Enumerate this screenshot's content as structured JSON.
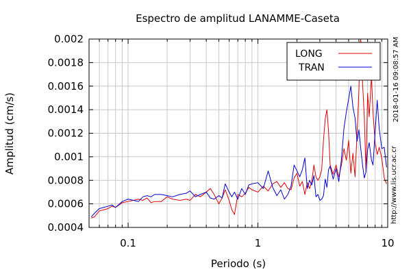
{
  "chart_data": {
    "type": "line",
    "title": "Espectro de amplitud LANAMME-Caseta",
    "xlabel": "Periodo (s)",
    "ylabel": "Amplitud (cm/s)",
    "xscale": "log",
    "xlim": [
      0.05,
      10
    ],
    "ylim": [
      0.0004,
      0.002
    ],
    "x_ticks": [
      0.1,
      1,
      10
    ],
    "x_tick_labels": [
      "0.1",
      "1",
      "10"
    ],
    "y_ticks": [
      0.0004,
      0.0006,
      0.0008,
      0.001,
      0.0012,
      0.0014,
      0.0016,
      0.0018,
      0.002
    ],
    "y_tick_labels": [
      "0.0004",
      "0.0006",
      "0.0008",
      "0.001",
      "0.0012",
      "0.0014",
      "0.0016",
      "0.0018",
      "0.002"
    ],
    "grid": true,
    "legend_position": "top-right",
    "series": [
      {
        "name": "LONG",
        "color": "#e00000",
        "x": [
          0.052,
          0.055,
          0.06,
          0.065,
          0.07,
          0.075,
          0.08,
          0.09,
          0.1,
          0.11,
          0.12,
          0.13,
          0.14,
          0.15,
          0.16,
          0.18,
          0.2,
          0.22,
          0.25,
          0.28,
          0.3,
          0.33,
          0.36,
          0.4,
          0.43,
          0.46,
          0.5,
          0.53,
          0.56,
          0.6,
          0.63,
          0.66,
          0.7,
          0.75,
          0.8,
          0.85,
          0.9,
          1.0,
          1.1,
          1.2,
          1.3,
          1.4,
          1.5,
          1.6,
          1.7,
          1.8,
          1.9,
          2.0,
          2.1,
          2.2,
          2.3,
          2.4,
          2.5,
          2.6,
          2.7,
          2.8,
          2.9,
          3.0,
          3.1,
          3.2,
          3.3,
          3.4,
          3.5,
          3.6,
          3.8,
          4.0,
          4.2,
          4.4,
          4.6,
          4.8,
          5.0,
          5.2,
          5.4,
          5.6,
          5.8,
          6.0,
          6.1,
          6.2,
          6.4,
          6.6,
          6.8,
          7.0,
          7.2,
          7.5,
          7.7,
          8.0,
          8.3,
          8.6,
          9.0,
          9.4,
          9.8
        ],
        "y": [
          0.00048,
          0.00049,
          0.00054,
          0.00055,
          0.00056,
          0.00058,
          0.00057,
          0.00061,
          0.00062,
          0.00063,
          0.00064,
          0.00063,
          0.00065,
          0.00061,
          0.00062,
          0.00062,
          0.00066,
          0.00064,
          0.00063,
          0.00064,
          0.00063,
          0.00068,
          0.00066,
          0.0007,
          0.00073,
          0.00068,
          0.0006,
          0.00065,
          0.00072,
          0.00063,
          0.00055,
          0.00051,
          0.00068,
          0.00066,
          0.00069,
          0.00074,
          0.00072,
          0.0007,
          0.00075,
          0.00071,
          0.00077,
          0.00079,
          0.00074,
          0.00078,
          0.00073,
          0.00072,
          0.00082,
          0.00086,
          0.00075,
          0.00079,
          0.00068,
          0.00078,
          0.00073,
          0.00079,
          0.00093,
          0.00083,
          0.0008,
          0.00083,
          0.00089,
          0.00114,
          0.00132,
          0.0014,
          0.00122,
          0.00093,
          0.00085,
          0.00093,
          0.00083,
          0.00093,
          0.00107,
          0.00097,
          0.00114,
          0.00086,
          0.00103,
          0.00083,
          0.00119,
          0.00156,
          0.0019,
          0.002,
          0.00163,
          0.00134,
          0.00087,
          0.00154,
          0.00134,
          0.00169,
          0.00138,
          0.00112,
          0.00102,
          0.00108,
          0.00099,
          0.00082,
          0.00077
        ]
      },
      {
        "name": "TRAN",
        "color": "#0000d0",
        "x": [
          0.052,
          0.055,
          0.06,
          0.065,
          0.07,
          0.075,
          0.08,
          0.09,
          0.1,
          0.11,
          0.12,
          0.13,
          0.14,
          0.15,
          0.16,
          0.18,
          0.2,
          0.22,
          0.25,
          0.28,
          0.3,
          0.33,
          0.36,
          0.4,
          0.43,
          0.46,
          0.5,
          0.53,
          0.56,
          0.6,
          0.63,
          0.66,
          0.7,
          0.75,
          0.8,
          0.85,
          0.9,
          1.0,
          1.1,
          1.2,
          1.3,
          1.4,
          1.5,
          1.6,
          1.7,
          1.8,
          1.9,
          2.0,
          2.1,
          2.2,
          2.3,
          2.4,
          2.5,
          2.6,
          2.7,
          2.8,
          2.9,
          3.0,
          3.1,
          3.2,
          3.3,
          3.4,
          3.5,
          3.6,
          3.8,
          4.0,
          4.2,
          4.4,
          4.6,
          4.8,
          5.0,
          5.2,
          5.4,
          5.6,
          5.8,
          6.0,
          6.2,
          6.4,
          6.6,
          6.8,
          7.0,
          7.2,
          7.5,
          7.7,
          8.0,
          8.3,
          8.6,
          9.0,
          9.4,
          9.8
        ],
        "y": [
          0.00049,
          0.00052,
          0.00056,
          0.00057,
          0.00058,
          0.00059,
          0.00057,
          0.00062,
          0.00064,
          0.00063,
          0.00062,
          0.00066,
          0.00067,
          0.00066,
          0.00068,
          0.00068,
          0.00067,
          0.00066,
          0.00068,
          0.00069,
          0.00071,
          0.00066,
          0.00068,
          0.0007,
          0.00065,
          0.00064,
          0.00067,
          0.00065,
          0.00077,
          0.0007,
          0.00066,
          0.0007,
          0.00064,
          0.00073,
          0.00068,
          0.00076,
          0.00077,
          0.00078,
          0.00073,
          0.00088,
          0.00074,
          0.00067,
          0.00072,
          0.00064,
          0.00068,
          0.00075,
          0.00093,
          0.00088,
          0.00083,
          0.00089,
          0.00099,
          0.00073,
          0.0008,
          0.00076,
          0.00084,
          0.00066,
          0.00068,
          0.00063,
          0.00064,
          0.00067,
          0.00081,
          0.00074,
          0.00089,
          0.00092,
          0.00081,
          0.0009,
          0.00079,
          0.00098,
          0.00124,
          0.00138,
          0.00149,
          0.0016,
          0.00142,
          0.00133,
          0.00113,
          0.00123,
          0.00107,
          0.00093,
          0.00082,
          0.00087,
          0.00106,
          0.00112,
          0.00097,
          0.00093,
          0.00121,
          0.00148,
          0.00124,
          0.00107,
          0.00108,
          0.00091
        ]
      }
    ]
  },
  "side_text": {
    "timestamp": "2018-01-16 09:08:57 AM",
    "url": "http://www.lis.ucr.ac.cr"
  }
}
